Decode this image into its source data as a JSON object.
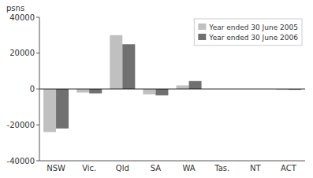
{
  "chart_data": {
    "type": "bar",
    "ylabel": "psns",
    "categories": [
      "NSW",
      "Vic.",
      "Qld",
      "SA",
      "WA",
      "Tas.",
      "NT",
      "ACT"
    ],
    "series": [
      {
        "name": "Year ended 30 June 2005",
        "color": "#c0c0c0",
        "values": [
          -24000,
          -2000,
          30000,
          -3000,
          2000,
          0,
          0,
          -500
        ]
      },
      {
        "name": "Year ended 30 June 2006",
        "color": "#707070",
        "values": [
          -22000,
          -2500,
          25000,
          -3500,
          4500,
          0,
          0,
          -500
        ]
      }
    ],
    "ylim": [
      -40000,
      40000
    ],
    "yticks": [
      -40000,
      -20000,
      0,
      20000,
      40000
    ],
    "grid": false,
    "legend": "upper right"
  }
}
